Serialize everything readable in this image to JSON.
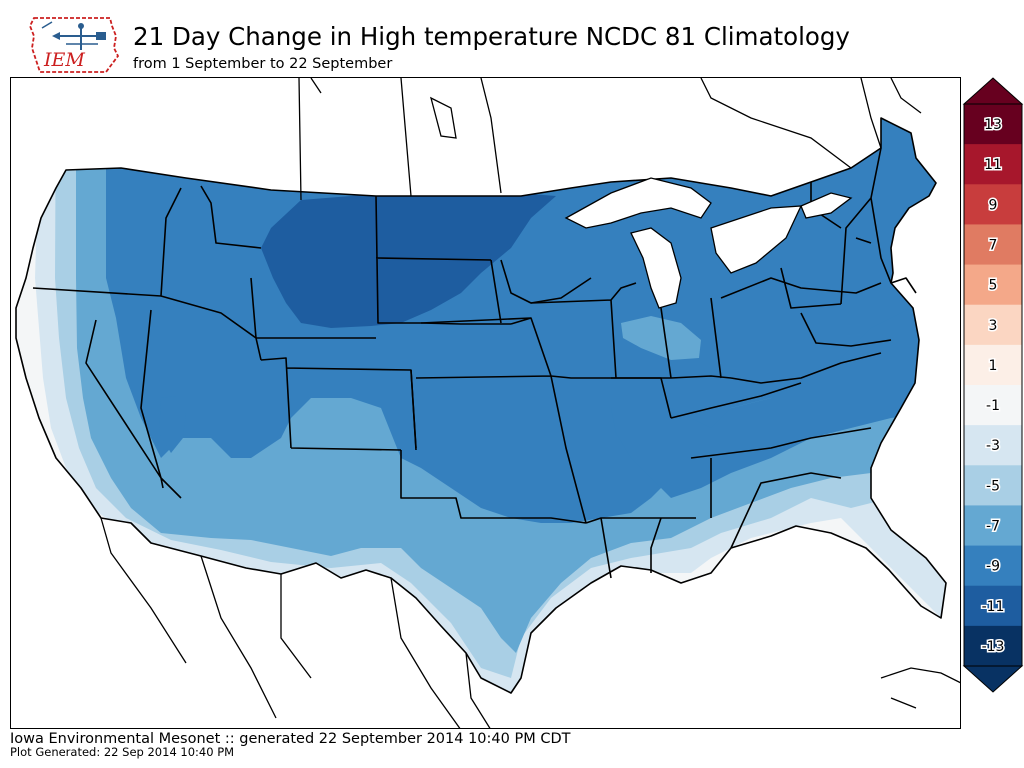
{
  "header": {
    "logo_text": "IEM",
    "title": "21 Day Change in High temperature NCDC 81 Climatology",
    "subtitle": "from 1 September to 22 September"
  },
  "colorbar": {
    "labels": [
      "13",
      "11",
      "9",
      "7",
      "5",
      "3",
      "1",
      "-1",
      "-3",
      "-5",
      "-7",
      "-9",
      "-11",
      "-13"
    ],
    "colors": [
      "#67001f",
      "#b2182b",
      "#d6604d",
      "#f4a582",
      "#fddbc7",
      "#f7f7f7",
      "#d1e5f0",
      "#92c5de",
      "#4393c3",
      "#2166ac",
      "#053061"
    ],
    "bands": [
      {
        "color": "#67001f"
      },
      {
        "color": "#a7172c"
      },
      {
        "color": "#c83d3d"
      },
      {
        "color": "#e07b62"
      },
      {
        "color": "#f4a889"
      },
      {
        "color": "#fbd6c2"
      },
      {
        "color": "#fcefe7"
      },
      {
        "color": "#f4f6f7"
      },
      {
        "color": "#d6e6f1"
      },
      {
        "color": "#a9cfe5"
      },
      {
        "color": "#64a8d2"
      },
      {
        "color": "#3580be"
      },
      {
        "color": "#1e5da0"
      },
      {
        "color": "#083263"
      }
    ]
  },
  "map": {
    "land_color": "#ffffff",
    "zones": [
      {
        "label": "-1",
        "color": "#f4f6f7"
      },
      {
        "label": "-3",
        "color": "#d6e6f1"
      },
      {
        "label": "-5",
        "color": "#a9cfe5"
      },
      {
        "label": "-7",
        "color": "#64a8d2"
      },
      {
        "label": "-9",
        "color": "#3580be"
      },
      {
        "label": "-11",
        "color": "#1e5da0"
      }
    ]
  },
  "footer": {
    "line1": "Iowa Environmental Mesonet :: generated 22 September 2014 10:40 PM CDT",
    "line2": "Plot Generated: 22 Sep 2014 10:40 PM"
  }
}
